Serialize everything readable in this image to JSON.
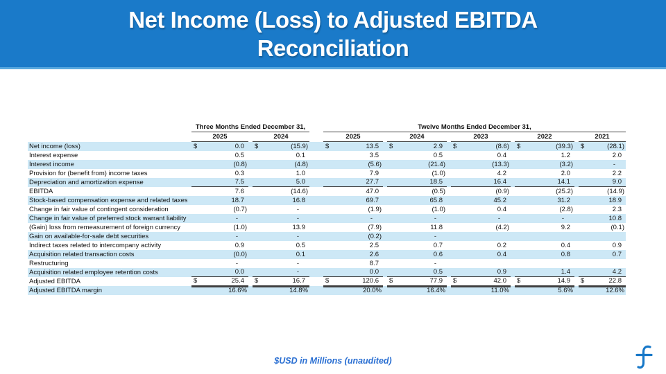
{
  "title": "Net Income (Loss) to Adjusted EBITDA Reconciliation",
  "footer": {
    "note": "$USD in Millions (unaudited)",
    "logo_icon": "flywire-f-logo"
  },
  "colors": {
    "banner_blue": "#1a7ac9",
    "banner_edge": "#58a8de",
    "stripe_blue": "#cde8f6",
    "rule_gray": "#3f3f3f",
    "note_blue": "#2a6fd2",
    "logo_blue": "#1878c8",
    "title_text": "#ffffff"
  },
  "table": {
    "group_headers": [
      {
        "label": "Three Months Ended December 31,",
        "span": 2
      },
      {
        "label": "Twelve Months Ended December 31,",
        "span": 5
      }
    ],
    "year_headers": [
      "2025",
      "2024",
      "2025",
      "2024",
      "2023",
      "2022",
      "2021"
    ],
    "rows": [
      {
        "label": "Net income (loss)",
        "dollar": true,
        "values": [
          "0.0",
          "(15.9)",
          "13.5",
          "2.9",
          "(8.6)",
          "(39.3)",
          "(28.1)"
        ]
      },
      {
        "label": "Interest expense",
        "values": [
          "0.5",
          "0.1",
          "3.5",
          "0.5",
          "0.4",
          "1.2",
          "2.0"
        ]
      },
      {
        "label": "Interest income",
        "values": [
          "(0.8)",
          "(4.8)",
          "(5.6)",
          "(21.4)",
          "(13.3)",
          "(3.2)",
          "-"
        ]
      },
      {
        "label": "Provision for (benefit from) income taxes",
        "values": [
          "0.3",
          "1.0",
          "7.9",
          "(1.0)",
          "4.2",
          "2.0",
          "2.2"
        ]
      },
      {
        "label": "Depreciation and amortization expense",
        "rule_below": "single",
        "values": [
          "7.5",
          "5.0",
          "27.7",
          "18.5",
          "16.4",
          "14.1",
          "9.0"
        ]
      },
      {
        "label": "EBITDA",
        "values": [
          "7.6",
          "(14.6)",
          "47.0",
          "(0.5)",
          "(0.9)",
          "(25.2)",
          "(14.9)"
        ]
      },
      {
        "label": "Stock-based compensation expense and related taxes",
        "values": [
          "18.7",
          "16.8",
          "69.7",
          "65.8",
          "45.2",
          "31.2",
          "18.9"
        ]
      },
      {
        "label": "Change in fair value of contingent consideration",
        "values": [
          "(0.7)",
          "-",
          "(1.9)",
          "(1.0)",
          "0.4",
          "(2.8)",
          "2.3"
        ]
      },
      {
        "label": "Change in fair value of preferred stock warrant liability",
        "values": [
          "-",
          "-",
          "-",
          "-",
          "-",
          "-",
          "10.8"
        ]
      },
      {
        "label": "(Gain) loss from remeasurement of foreign currency",
        "values": [
          "(1.0)",
          "13.9",
          "(7.9)",
          "11.8",
          "(4.2)",
          "9.2",
          "(0.1)"
        ]
      },
      {
        "label": "Gain on available-for-sale debt securities",
        "values": [
          "-",
          "-",
          "(0.2)",
          "-",
          "",
          "",
          ""
        ]
      },
      {
        "label": "Indirect taxes related to intercompany activity",
        "values": [
          "0.9",
          "0.5",
          "2.5",
          "0.7",
          "0.2",
          "0.4",
          "0.9"
        ]
      },
      {
        "label": "Acquisition related transaction costs",
        "values": [
          "(0.0)",
          "0.1",
          "2.6",
          "0.6",
          "0.4",
          "0.8",
          "0.7"
        ]
      },
      {
        "label": "Restructuring",
        "values": [
          "-",
          "-",
          "8.7",
          "-",
          "",
          "",
          ""
        ]
      },
      {
        "label": "Acquisition related employee retention costs",
        "rule_below": "single",
        "values": [
          "0.0",
          "-",
          "0.0",
          "0.5",
          "0.9",
          "1.4",
          "4.2"
        ]
      },
      {
        "label": "Adjusted EBITDA",
        "dollar": true,
        "rule_below": "double",
        "values": [
          "25.4",
          "16.7",
          "120.6",
          "77.9",
          "42.0",
          "14.9",
          "22.8"
        ]
      },
      {
        "label": "Adjusted EBITDA margin",
        "values": [
          "16.6%",
          "14.8%",
          "20.0%",
          "16.4%",
          "11.0%",
          "5.6%",
          "12.6%"
        ]
      }
    ]
  }
}
